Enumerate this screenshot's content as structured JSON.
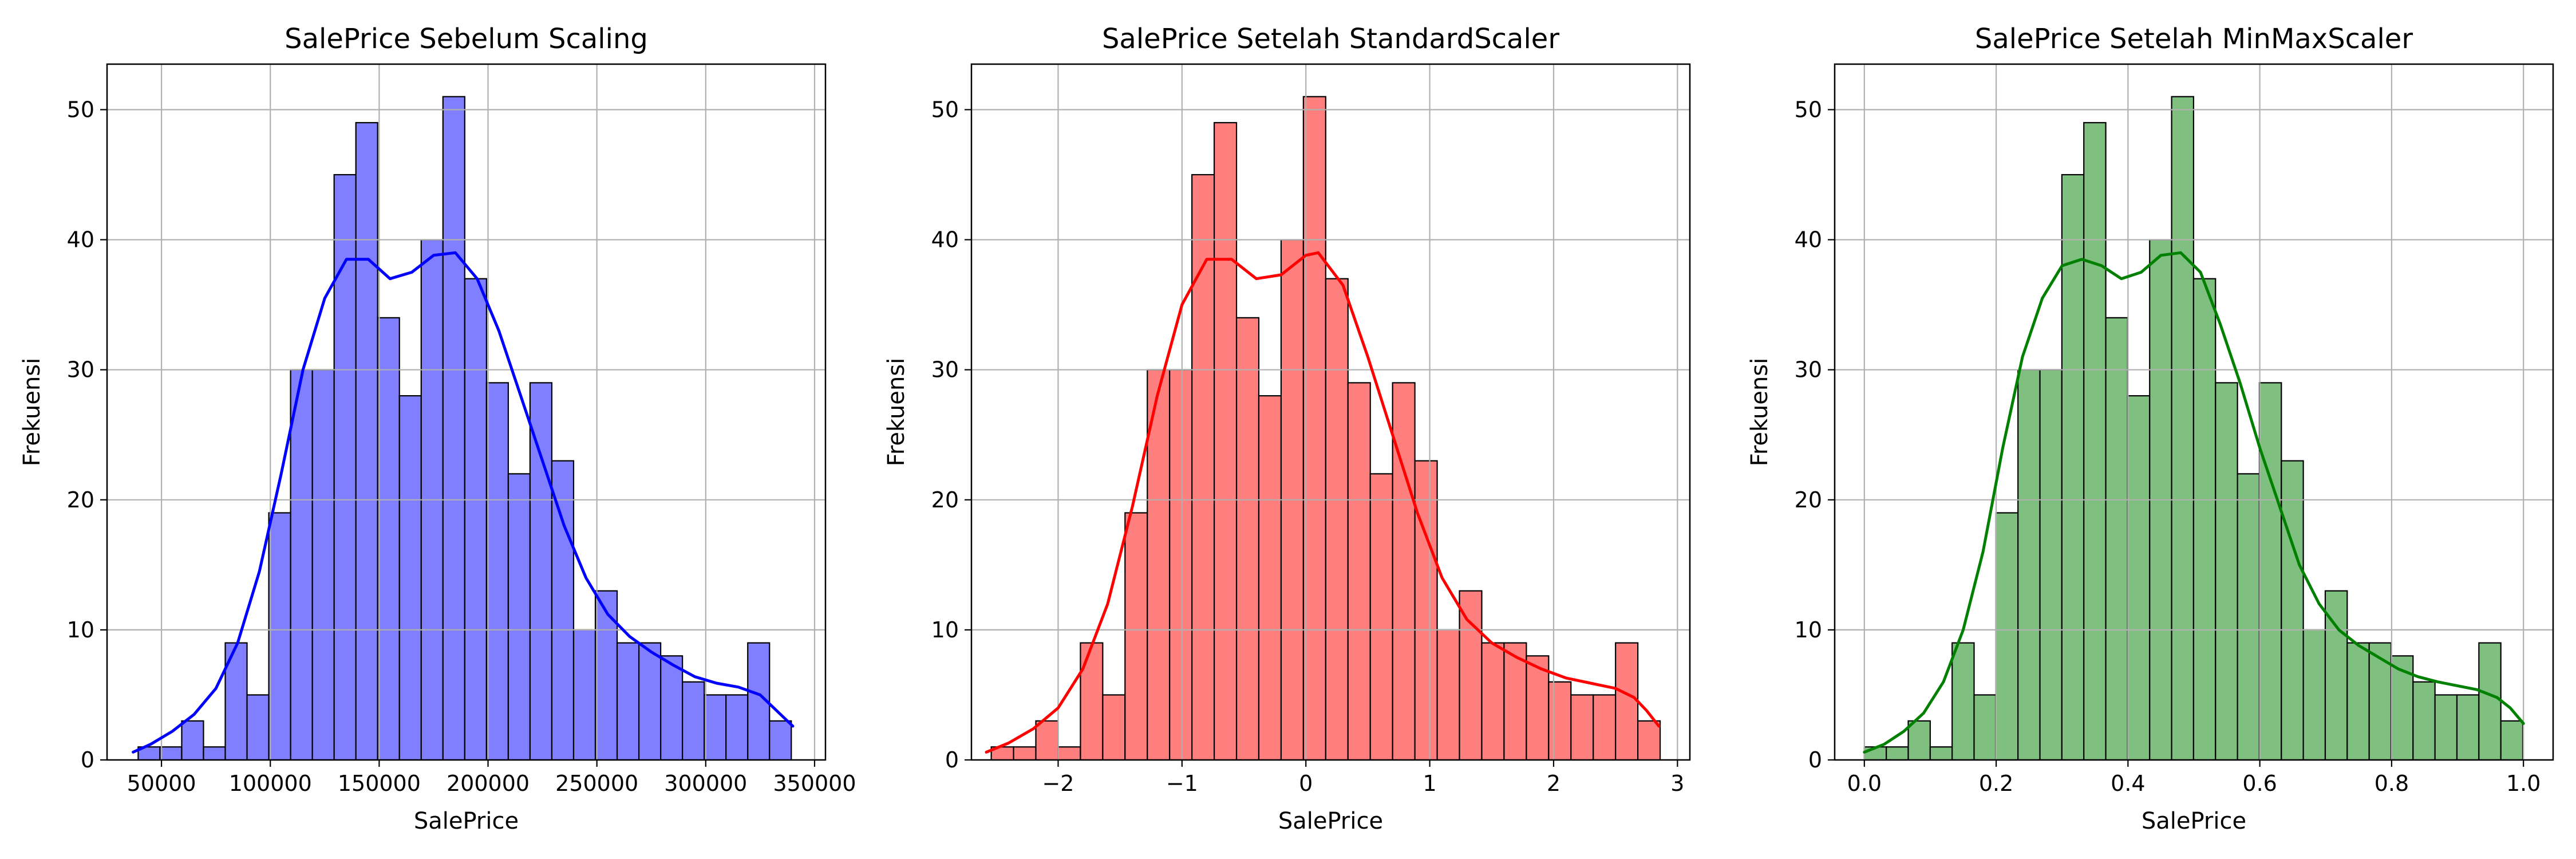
{
  "figure": {
    "background": "#ffffff"
  },
  "chart_data": [
    {
      "type": "histogram",
      "title": "SalePrice Sebelum Scaling",
      "xlabel": "SalePrice",
      "ylabel": "Frekuensi",
      "color": "#0000ff",
      "fill_color": "#7f7fff",
      "xlim": [
        25000,
        355000
      ],
      "ylim": [
        0,
        53.5
      ],
      "xticks": [
        50000,
        100000,
        150000,
        200000,
        250000,
        300000,
        350000
      ],
      "xtick_labels": [
        "50000",
        "100000",
        "150000",
        "200000",
        "250000",
        "300000",
        "350000"
      ],
      "yticks": [
        0,
        10,
        20,
        30,
        40,
        50
      ],
      "ytick_labels": [
        "0",
        "10",
        "20",
        "30",
        "40",
        "50"
      ],
      "bin_start": 39300,
      "bin_width": 10000,
      "counts": [
        1,
        1,
        3,
        1,
        9,
        5,
        19,
        30,
        30,
        45,
        49,
        34,
        28,
        40,
        51,
        37,
        29,
        22,
        29,
        23,
        10,
        13,
        9,
        9,
        8,
        6,
        5,
        5,
        9,
        3
      ],
      "kde": [
        [
          37000,
          0.6
        ],
        [
          45000,
          1.2
        ],
        [
          55000,
          2.2
        ],
        [
          65000,
          3.5
        ],
        [
          75000,
          5.5
        ],
        [
          85000,
          9.0
        ],
        [
          95000,
          14.5
        ],
        [
          105000,
          22.0
        ],
        [
          115000,
          30.0
        ],
        [
          125000,
          35.5
        ],
        [
          135000,
          38.5
        ],
        [
          145000,
          38.5
        ],
        [
          155000,
          37.0
        ],
        [
          165000,
          37.5
        ],
        [
          175000,
          38.8
        ],
        [
          185000,
          39.0
        ],
        [
          195000,
          37.0
        ],
        [
          205000,
          33.0
        ],
        [
          215000,
          28.0
        ],
        [
          225000,
          23.0
        ],
        [
          235000,
          18.0
        ],
        [
          245000,
          14.0
        ],
        [
          255000,
          11.2
        ],
        [
          265000,
          9.5
        ],
        [
          275000,
          8.3
        ],
        [
          285000,
          7.3
        ],
        [
          295000,
          6.4
        ],
        [
          305000,
          5.9
        ],
        [
          315000,
          5.6
        ],
        [
          325000,
          5.0
        ],
        [
          330000,
          4.2
        ],
        [
          340000,
          2.6
        ]
      ],
      "grid": true
    },
    {
      "type": "histogram",
      "title": "SalePrice Setelah StandardScaler",
      "xlabel": "SalePrice",
      "ylabel": "Frekuensi",
      "color": "#ff0000",
      "fill_color": "#ff7f7f",
      "xlim": [
        -2.7,
        3.1
      ],
      "ylim": [
        0,
        53.5
      ],
      "xticks": [
        -2,
        -1,
        0,
        1,
        2,
        3
      ],
      "xtick_labels": [
        "−2",
        "−1",
        "0",
        "1",
        "2",
        "3"
      ],
      "yticks": [
        0,
        10,
        20,
        30,
        40,
        50
      ],
      "ytick_labels": [
        "0",
        "10",
        "20",
        "30",
        "40",
        "50"
      ],
      "bin_start": -2.54,
      "bin_width": 0.18,
      "counts": [
        1,
        1,
        3,
        1,
        9,
        5,
        19,
        30,
        30,
        45,
        49,
        34,
        28,
        40,
        51,
        37,
        29,
        22,
        29,
        23,
        10,
        13,
        9,
        9,
        8,
        6,
        5,
        5,
        9,
        3
      ],
      "kde": [
        [
          -2.58,
          0.6
        ],
        [
          -2.4,
          1.3
        ],
        [
          -2.2,
          2.4
        ],
        [
          -2.0,
          4.0
        ],
        [
          -1.8,
          7.0
        ],
        [
          -1.6,
          12.0
        ],
        [
          -1.4,
          19.5
        ],
        [
          -1.2,
          28.0
        ],
        [
          -1.0,
          35.0
        ],
        [
          -0.8,
          38.5
        ],
        [
          -0.6,
          38.5
        ],
        [
          -0.4,
          37.0
        ],
        [
          -0.2,
          37.3
        ],
        [
          0.0,
          38.8
        ],
        [
          0.1,
          39.0
        ],
        [
          0.3,
          36.5
        ],
        [
          0.5,
          31.0
        ],
        [
          0.7,
          25.0
        ],
        [
          0.9,
          19.0
        ],
        [
          1.1,
          14.0
        ],
        [
          1.3,
          10.8
        ],
        [
          1.5,
          9.0
        ],
        [
          1.7,
          7.9
        ],
        [
          1.9,
          7.0
        ],
        [
          2.1,
          6.3
        ],
        [
          2.3,
          5.9
        ],
        [
          2.5,
          5.5
        ],
        [
          2.65,
          4.8
        ],
        [
          2.75,
          3.8
        ],
        [
          2.85,
          2.6
        ]
      ],
      "grid": true
    },
    {
      "type": "histogram",
      "title": "SalePrice Setelah MinMaxScaler",
      "xlabel": "SalePrice",
      "ylabel": "Frekuensi",
      "color": "#008000",
      "fill_color": "#7fbf7f",
      "xlim": [
        -0.045,
        1.045
      ],
      "ylim": [
        0,
        53.5
      ],
      "xticks": [
        0.0,
        0.2,
        0.4,
        0.6,
        0.8,
        1.0
      ],
      "xtick_labels": [
        "0.0",
        "0.2",
        "0.4",
        "0.6",
        "0.8",
        "1.0"
      ],
      "yticks": [
        0,
        10,
        20,
        30,
        40,
        50
      ],
      "ytick_labels": [
        "0",
        "10",
        "20",
        "30",
        "40",
        "50"
      ],
      "bin_start": 0.0,
      "bin_width": 0.0333,
      "counts": [
        1,
        1,
        3,
        1,
        9,
        5,
        19,
        30,
        30,
        45,
        49,
        34,
        28,
        40,
        51,
        37,
        29,
        22,
        29,
        23,
        10,
        13,
        9,
        9,
        8,
        6,
        5,
        5,
        9,
        3
      ],
      "kde": [
        [
          0.0,
          0.6
        ],
        [
          0.03,
          1.2
        ],
        [
          0.06,
          2.2
        ],
        [
          0.09,
          3.6
        ],
        [
          0.12,
          6.0
        ],
        [
          0.15,
          10.0
        ],
        [
          0.18,
          16.0
        ],
        [
          0.21,
          24.0
        ],
        [
          0.24,
          31.0
        ],
        [
          0.27,
          35.5
        ],
        [
          0.3,
          38.0
        ],
        [
          0.33,
          38.5
        ],
        [
          0.36,
          38.0
        ],
        [
          0.39,
          37.0
        ],
        [
          0.42,
          37.5
        ],
        [
          0.45,
          38.8
        ],
        [
          0.48,
          39.0
        ],
        [
          0.51,
          37.5
        ],
        [
          0.54,
          33.5
        ],
        [
          0.57,
          29.0
        ],
        [
          0.6,
          24.0
        ],
        [
          0.63,
          19.5
        ],
        [
          0.66,
          15.0
        ],
        [
          0.69,
          12.0
        ],
        [
          0.72,
          10.0
        ],
        [
          0.75,
          8.8
        ],
        [
          0.78,
          7.9
        ],
        [
          0.81,
          7.0
        ],
        [
          0.84,
          6.4
        ],
        [
          0.87,
          6.0
        ],
        [
          0.9,
          5.7
        ],
        [
          0.93,
          5.4
        ],
        [
          0.96,
          4.8
        ],
        [
          0.98,
          4.0
        ],
        [
          1.0,
          2.8
        ]
      ],
      "grid": true
    }
  ]
}
